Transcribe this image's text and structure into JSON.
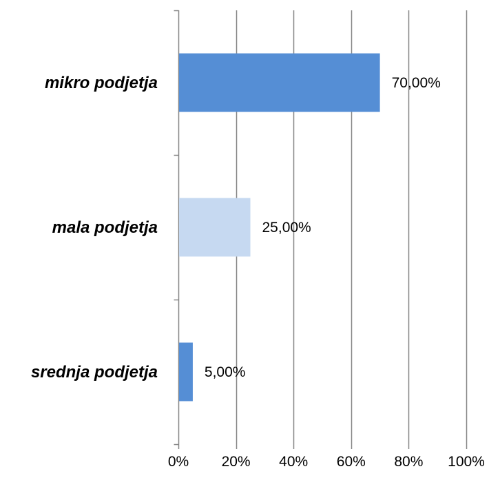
{
  "chart_data": {
    "type": "bar",
    "orientation": "horizontal",
    "categories": [
      "mikro podjetja",
      "mala podjetja",
      "srednja podjetja"
    ],
    "values": [
      70,
      25,
      5
    ],
    "data_labels": [
      "70,00%",
      "25,00%",
      "5,00%"
    ],
    "bar_colors": [
      "#558ED5",
      "#C6D9F1",
      "#558ED5"
    ],
    "x_ticks": [
      0,
      20,
      40,
      60,
      80,
      100
    ],
    "x_tick_labels": [
      "0%",
      "20%",
      "40%",
      "60%",
      "80%",
      "100%"
    ],
    "xlim": [
      0,
      100
    ],
    "grid": true,
    "gridline_color": "#868686",
    "axis_color": "#868686",
    "legend": "none"
  }
}
